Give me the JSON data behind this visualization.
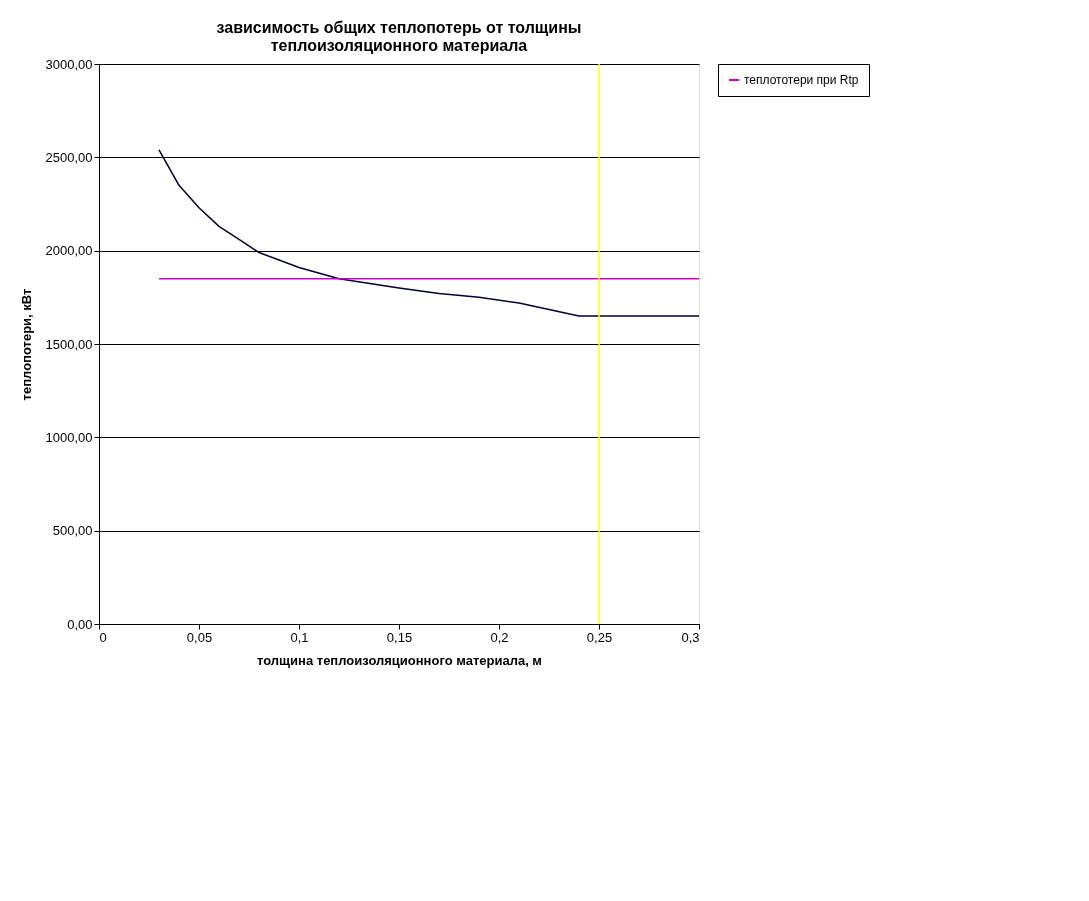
{
  "chart_data": {
    "type": "line",
    "title": [
      "зависимость общих теплопотерь от толщины",
      "теплоизоляционного материала"
    ],
    "xlabel": "толщина теплоизоляционного материала, м",
    "ylabel": "теплопотери, кВт",
    "series": [
      {
        "color": "#000033",
        "x": [
          0.03,
          0.04,
          0.05,
          0.06,
          0.07,
          0.08,
          0.09,
          0.1,
          0.12,
          0.15,
          0.17,
          0.19,
          0.21,
          0.24,
          0.3
        ],
        "values": [
          2540,
          2350,
          2230,
          2130,
          2060,
          1990,
          1950,
          1910,
          1850,
          1800,
          1770,
          1750,
          1720,
          1650,
          1650
        ]
      },
      {
        "name": "теплототери при Rtp",
        "color": "#cc00cc",
        "x": [
          0.03,
          0.3
        ],
        "values": [
          1850,
          1850
        ]
      }
    ],
    "ref_lines": [
      {
        "axis": "x",
        "value": 0.25,
        "color": "#ffff00"
      }
    ],
    "xlim": [
      0,
      0.3
    ],
    "ylim": [
      0,
      3000
    ],
    "xticks": [
      0,
      {
        "value": 0.05,
        "label": "0,05"
      },
      {
        "value": 0.1,
        "label": "0,1"
      },
      {
        "value": 0.15,
        "label": "0,15"
      },
      {
        "value": 0.2,
        "label": "0,2"
      },
      {
        "value": 0.25,
        "label": "0,25"
      },
      {
        "value": 0.3,
        "label": "0,3"
      }
    ],
    "yticks": [
      {
        "value": 0,
        "label": "0,00"
      },
      {
        "value": 500,
        "label": "500,00"
      },
      {
        "value": 1000,
        "label": "1000,00"
      },
      {
        "value": 1500,
        "label": "1500,00"
      },
      {
        "value": 2000,
        "label": "2000,00"
      },
      {
        "value": 2500,
        "label": "2500,00"
      },
      {
        "value": 3000,
        "label": "3000,00"
      }
    ],
    "grid": "y",
    "legend": "top right",
    "marker": "none",
    "line_style": "solid"
  }
}
